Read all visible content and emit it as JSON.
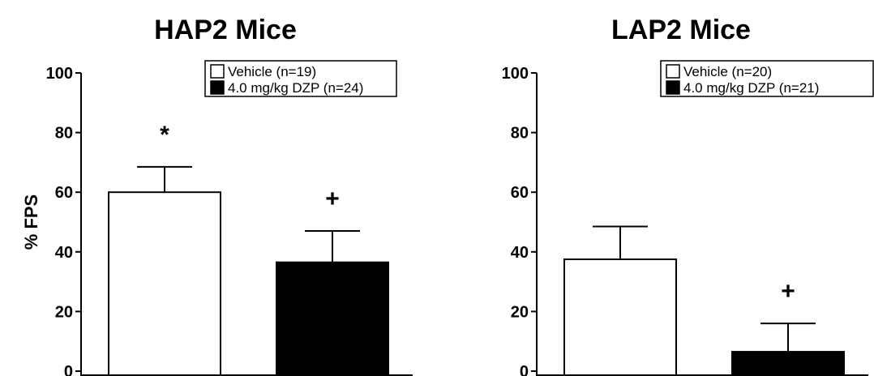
{
  "chart_data": [
    {
      "type": "bar",
      "title": "HAP2 Mice",
      "ylabel": "% FPS",
      "xlabel": "",
      "ylim": [
        0,
        100
      ],
      "yticks": [
        "0",
        "20",
        "40",
        "60",
        "80",
        "100"
      ],
      "grid": false,
      "legend_position": "top-right",
      "series": [
        {
          "name": "Vehicle (n=19)",
          "value": 60,
          "error": 8.5,
          "fill": "#ffffff",
          "annotation": "*"
        },
        {
          "name": "4.0 mg/kg DZP (n=24)",
          "value": 36.5,
          "error": 10.5,
          "fill": "#000000",
          "annotation": "+"
        }
      ]
    },
    {
      "type": "bar",
      "title": "LAP2 Mice",
      "ylabel": "",
      "xlabel": "",
      "ylim": [
        0,
        100
      ],
      "yticks": [
        "0",
        "20",
        "40",
        "60",
        "80",
        "100"
      ],
      "grid": false,
      "legend_position": "top-right",
      "series": [
        {
          "name": "Vehicle (n=20)",
          "value": 37.5,
          "error": 11,
          "fill": "#ffffff",
          "annotation": ""
        },
        {
          "name": "4.0 mg/kg DZP (n=21)",
          "value": 6.5,
          "error": 9.5,
          "fill": "#000000",
          "annotation": "+"
        }
      ]
    }
  ]
}
